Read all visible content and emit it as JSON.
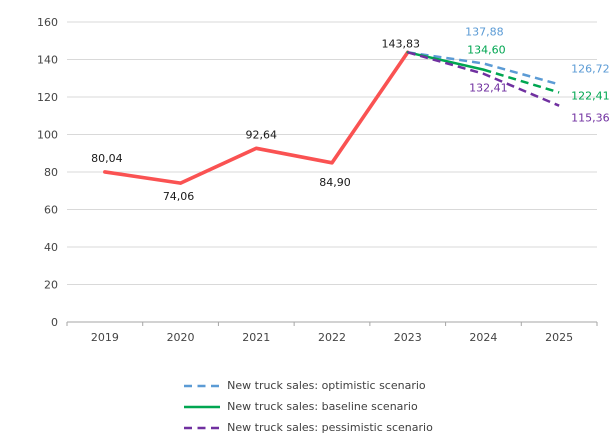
{
  "chart_data": {
    "type": "line",
    "title": "",
    "categories": [
      "2019",
      "2020",
      "2021",
      "2022",
      "2023",
      "2024",
      "2025"
    ],
    "y_axis": {
      "min": 0,
      "max": 160,
      "step": 20,
      "tick_labels": [
        "0",
        "20",
        "40",
        "60",
        "80",
        "100",
        "120",
        "140",
        "160"
      ]
    },
    "x_axis": {
      "tick_labels": [
        "2019",
        "2020",
        "2021",
        "2022",
        "2023",
        "2024",
        "2025"
      ]
    },
    "grid": true,
    "legend_position": "bottom",
    "colors": {
      "historical": "#FA5252",
      "optimistic": "#5B9BD5",
      "baseline": "#00A651",
      "pessimistic": "#7030A0",
      "gridline": "#D9D9D9",
      "axis": "#A6A6A6",
      "tick_text": "#444444",
      "data_label_black": "#1A1A1A"
    },
    "series": [
      {
        "id": "historical",
        "name": "",
        "in_legend": false,
        "color": "#FA5252",
        "label_color": "#1A1A1A",
        "width": 3.6,
        "dashed_from_index": null,
        "points": [
          {
            "x": "2019",
            "y": 80.04,
            "label": "80,04",
            "label_offset": [
              2,
              -10
            ],
            "label_anchor": "middle"
          },
          {
            "x": "2020",
            "y": 74.06,
            "label": "74,06",
            "label_offset": [
              -2,
              17
            ],
            "label_anchor": "middle"
          },
          {
            "x": "2021",
            "y": 92.64,
            "label": "92,64",
            "label_offset": [
              5,
              -10
            ],
            "label_anchor": "middle"
          },
          {
            "x": "2022",
            "y": 84.9,
            "label": "84,90",
            "label_offset": [
              3,
              23
            ],
            "label_anchor": "middle"
          },
          {
            "x": "2023",
            "y": 143.83,
            "label": "143,83",
            "label_offset": [
              -7,
              -5
            ],
            "label_anchor": "middle"
          }
        ]
      },
      {
        "id": "optimistic",
        "name": "New truck sales: optimistic scenario",
        "in_legend": true,
        "color": "#5B9BD5",
        "width": 2.5,
        "dashed_from_index": 0,
        "points": [
          {
            "x": "2023",
            "y": 143.83
          },
          {
            "x": "2024",
            "y": 137.88,
            "label": "137,88",
            "label_offset": [
              1,
              -28
            ],
            "label_anchor": "middle"
          },
          {
            "x": "2025",
            "y": 126.72,
            "label": "126,72",
            "label_offset": [
              12,
              -12
            ],
            "label_anchor": "start"
          }
        ]
      },
      {
        "id": "baseline",
        "name": "New truck sales: baseline scenario",
        "in_legend": true,
        "color": "#00A651",
        "width": 2.5,
        "dashed_from_index": 1,
        "points": [
          {
            "x": "2023",
            "y": 143.83
          },
          {
            "x": "2024",
            "y": 134.6,
            "label": "134,60",
            "label_offset": [
              3,
              -16
            ],
            "label_anchor": "middle"
          },
          {
            "x": "2025",
            "y": 122.41,
            "label": "122,41",
            "label_offset": [
              12,
              7
            ],
            "label_anchor": "start"
          }
        ]
      },
      {
        "id": "pessimistic",
        "name": "New truck sales: pessimistic scenario",
        "in_legend": true,
        "color": "#7030A0",
        "width": 2.5,
        "dashed_from_index": 0,
        "points": [
          {
            "x": "2023",
            "y": 143.83
          },
          {
            "x": "2024",
            "y": 132.41,
            "label": "132,41",
            "label_offset": [
              5,
              18
            ],
            "label_anchor": "middle"
          },
          {
            "x": "2025",
            "y": 115.36,
            "label": "115,36",
            "label_offset": [
              12,
              16
            ],
            "label_anchor": "start"
          }
        ]
      }
    ]
  }
}
